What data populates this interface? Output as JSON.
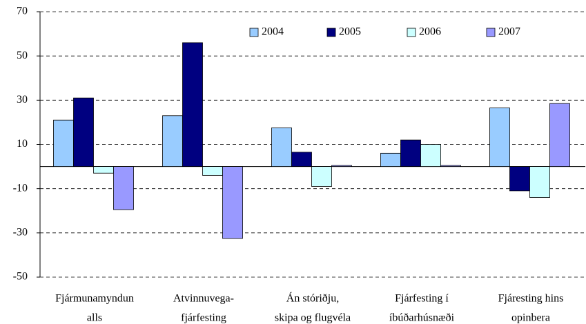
{
  "chart_data": {
    "type": "bar",
    "categories": [
      [
        "Fjármunamyndun",
        "alls"
      ],
      [
        "Atvinnuvega-",
        "fjárfesting"
      ],
      [
        "Án stóriðju,",
        "skipa og flugvéla"
      ],
      [
        "Fjárfesting í",
        "íbúðarhúsnæði"
      ],
      [
        "Fjáresting hins",
        "opinbera"
      ]
    ],
    "series": [
      {
        "name": "2004",
        "color": "#99ccff",
        "values": [
          21,
          23,
          17.5,
          6,
          26.5
        ]
      },
      {
        "name": "2005",
        "color": "#000080",
        "values": [
          31,
          56,
          6.5,
          12,
          -11
        ]
      },
      {
        "name": "2006",
        "color": "#ccffff",
        "values": [
          -3,
          -4,
          -9,
          10,
          -14
        ]
      },
      {
        "name": "2007",
        "color": "#9999ff",
        "values": [
          -19.5,
          -32.5,
          0.5,
          0.5,
          28.5
        ]
      }
    ],
    "ylim": [
      -50,
      70
    ],
    "yticks": [
      -50,
      -30,
      -10,
      10,
      30,
      50,
      70
    ],
    "grid": true,
    "legend": "top"
  }
}
